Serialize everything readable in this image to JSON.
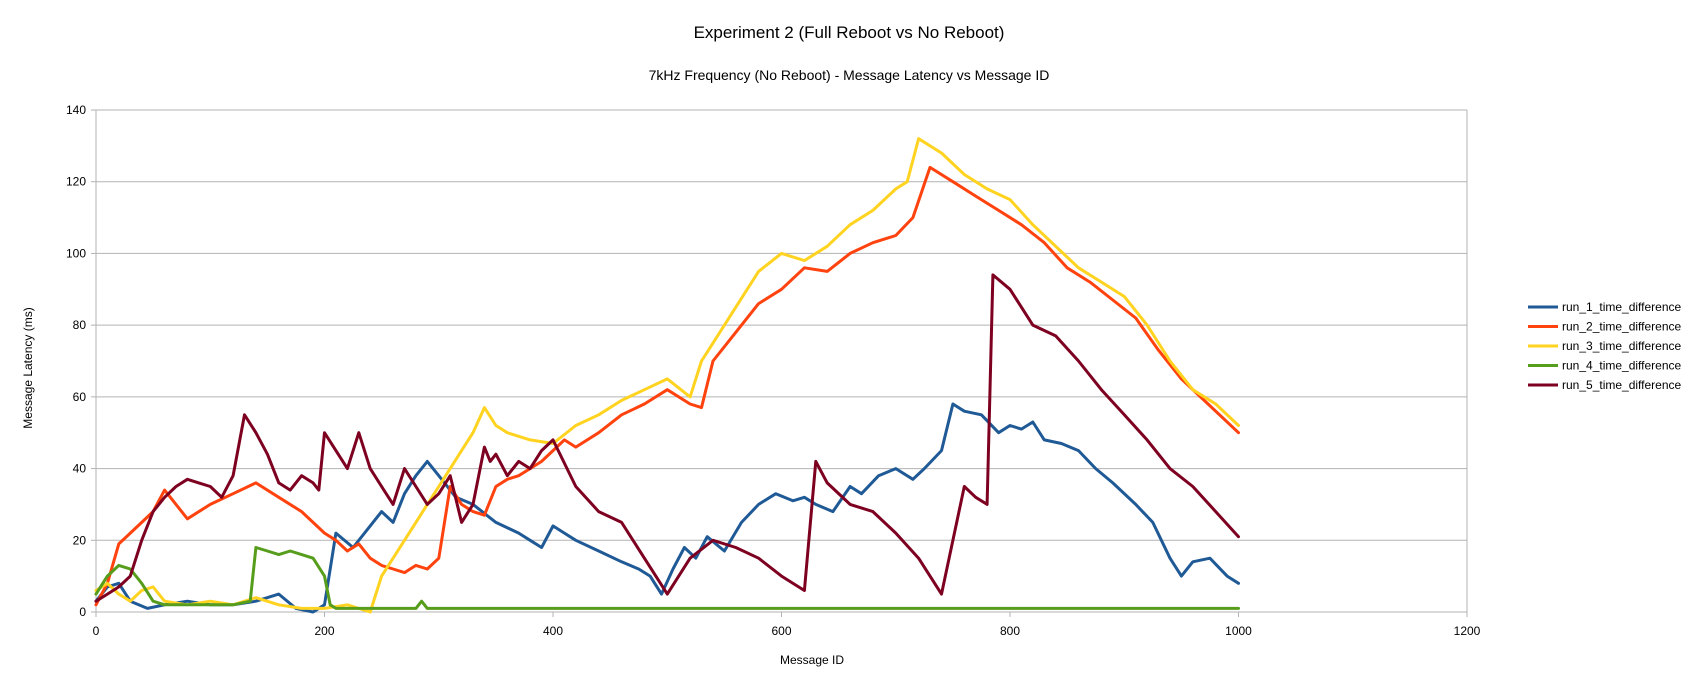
{
  "chart_data": {
    "type": "line",
    "title": "Experiment 2 (Full Reboot vs No Reboot)",
    "subtitle": "7kHz Frequency (No Reboot) - Message Latency vs Message ID",
    "xlabel": "Message ID",
    "ylabel": "Message Latency (ms)",
    "xlim": [
      0,
      1200
    ],
    "ylim": [
      0,
      140
    ],
    "xticks": [
      "0",
      "200",
      "400",
      "600",
      "800",
      "1000",
      "1200"
    ],
    "yticks": [
      "0",
      "20",
      "40",
      "60",
      "80",
      "100",
      "120",
      "140"
    ],
    "grid": "horizontal",
    "legend_position": "right",
    "series": [
      {
        "name": "run_1_time_difference",
        "color": "#1f5a96",
        "x": [
          0,
          10,
          20,
          30,
          45,
          60,
          80,
          100,
          120,
          140,
          160,
          175,
          190,
          200,
          210,
          225,
          240,
          250,
          260,
          270,
          280,
          290,
          300,
          315,
          330,
          350,
          370,
          380,
          390,
          400,
          410,
          420,
          440,
          460,
          475,
          485,
          495,
          505,
          515,
          525,
          535,
          550,
          565,
          580,
          595,
          610,
          620,
          630,
          645,
          660,
          670,
          685,
          700,
          715,
          725,
          740,
          750,
          760,
          775,
          790,
          800,
          810,
          820,
          830,
          845,
          860,
          875,
          890,
          910,
          925,
          940,
          950,
          960,
          975,
          990,
          1000
        ],
        "values": [
          3,
          7,
          8,
          3,
          1,
          2,
          3,
          2,
          2,
          3,
          5,
          1,
          0,
          2,
          22,
          18,
          24,
          28,
          25,
          33,
          38,
          42,
          38,
          32,
          30,
          25,
          22,
          20,
          18,
          24,
          22,
          20,
          17,
          14,
          12,
          10,
          5,
          12,
          18,
          15,
          21,
          17,
          25,
          30,
          33,
          31,
          32,
          30,
          28,
          35,
          33,
          38,
          40,
          37,
          40,
          45,
          58,
          56,
          55,
          50,
          52,
          51,
          53,
          48,
          47,
          45,
          40,
          36,
          30,
          25,
          15,
          10,
          14,
          15,
          10,
          8
        ]
      },
      {
        "name": "run_2_time_difference",
        "color": "#ff420e",
        "x": [
          0,
          10,
          20,
          30,
          40,
          50,
          60,
          80,
          100,
          120,
          140,
          160,
          180,
          200,
          210,
          220,
          230,
          240,
          250,
          260,
          270,
          280,
          290,
          300,
          310,
          320,
          330,
          340,
          350,
          360,
          370,
          380,
          390,
          400,
          410,
          420,
          440,
          460,
          480,
          500,
          520,
          530,
          540,
          560,
          580,
          600,
          620,
          640,
          660,
          680,
          700,
          715,
          730,
          750,
          770,
          790,
          810,
          830,
          850,
          870,
          890,
          910,
          930,
          950,
          970,
          1000
        ],
        "values": [
          2,
          8,
          19,
          22,
          25,
          28,
          34,
          26,
          30,
          33,
          36,
          32,
          28,
          22,
          20,
          17,
          19,
          15,
          13,
          12,
          11,
          13,
          12,
          15,
          35,
          30,
          28,
          27,
          35,
          37,
          38,
          40,
          42,
          45,
          48,
          46,
          50,
          55,
          58,
          62,
          58,
          57,
          70,
          78,
          86,
          90,
          96,
          95,
          100,
          103,
          105,
          110,
          124,
          120,
          116,
          112,
          108,
          103,
          96,
          92,
          87,
          82,
          73,
          65,
          59,
          50
        ]
      },
      {
        "name": "run_3_time_difference",
        "color": "#ffd320",
        "x": [
          0,
          10,
          20,
          30,
          40,
          50,
          60,
          80,
          100,
          120,
          140,
          160,
          180,
          200,
          220,
          240,
          250,
          260,
          270,
          280,
          290,
          300,
          310,
          320,
          330,
          340,
          350,
          360,
          380,
          400,
          420,
          440,
          460,
          480,
          500,
          520,
          530,
          540,
          560,
          580,
          600,
          620,
          640,
          660,
          680,
          700,
          710,
          720,
          740,
          760,
          780,
          800,
          820,
          840,
          860,
          880,
          900,
          920,
          940,
          960,
          980,
          1000
        ],
        "values": [
          6,
          8,
          5,
          3,
          6,
          7,
          3,
          2,
          3,
          2,
          4,
          2,
          1,
          1,
          2,
          0,
          10,
          15,
          20,
          25,
          30,
          35,
          40,
          45,
          50,
          57,
          52,
          50,
          48,
          47,
          52,
          55,
          59,
          62,
          65,
          60,
          70,
          75,
          85,
          95,
          100,
          98,
          102,
          108,
          112,
          118,
          120,
          132,
          128,
          122,
          118,
          115,
          108,
          102,
          96,
          92,
          88,
          80,
          70,
          62,
          58,
          52
        ]
      },
      {
        "name": "run_4_time_difference",
        "color": "#579d1c",
        "x": [
          0,
          10,
          20,
          30,
          40,
          50,
          60,
          80,
          100,
          120,
          135,
          140,
          150,
          160,
          170,
          180,
          190,
          200,
          205,
          210,
          280,
          285,
          290,
          300,
          400,
          500,
          600,
          700,
          800,
          900,
          1000
        ],
        "values": [
          5,
          10,
          13,
          12,
          8,
          3,
          2,
          2,
          2,
          2,
          3,
          18,
          17,
          16,
          17,
          16,
          15,
          10,
          2,
          1,
          1,
          3,
          1,
          1,
          1,
          1,
          1,
          1,
          1,
          1,
          1
        ]
      },
      {
        "name": "run_5_time_difference",
        "color": "#7e0021",
        "x": [
          0,
          10,
          20,
          30,
          40,
          50,
          60,
          70,
          80,
          90,
          100,
          110,
          120,
          130,
          140,
          150,
          160,
          170,
          180,
          190,
          195,
          200,
          210,
          220,
          230,
          240,
          250,
          260,
          270,
          280,
          290,
          300,
          310,
          320,
          330,
          340,
          345,
          350,
          360,
          370,
          380,
          390,
          400,
          420,
          440,
          460,
          480,
          500,
          520,
          540,
          560,
          580,
          600,
          620,
          630,
          640,
          660,
          680,
          700,
          720,
          740,
          760,
          770,
          780,
          785,
          800,
          820,
          840,
          860,
          880,
          900,
          920,
          940,
          960,
          980,
          1000
        ],
        "values": [
          3,
          5,
          7,
          10,
          20,
          28,
          32,
          35,
          37,
          36,
          35,
          32,
          38,
          55,
          50,
          44,
          36,
          34,
          38,
          36,
          34,
          50,
          45,
          40,
          50,
          40,
          35,
          30,
          40,
          35,
          30,
          33,
          38,
          25,
          30,
          46,
          42,
          44,
          38,
          42,
          40,
          45,
          48,
          35,
          28,
          25,
          15,
          5,
          15,
          20,
          18,
          15,
          10,
          6,
          42,
          36,
          30,
          28,
          22,
          15,
          5,
          35,
          32,
          30,
          94,
          90,
          80,
          77,
          70,
          62,
          55,
          48,
          40,
          35,
          28,
          21
        ]
      }
    ]
  }
}
